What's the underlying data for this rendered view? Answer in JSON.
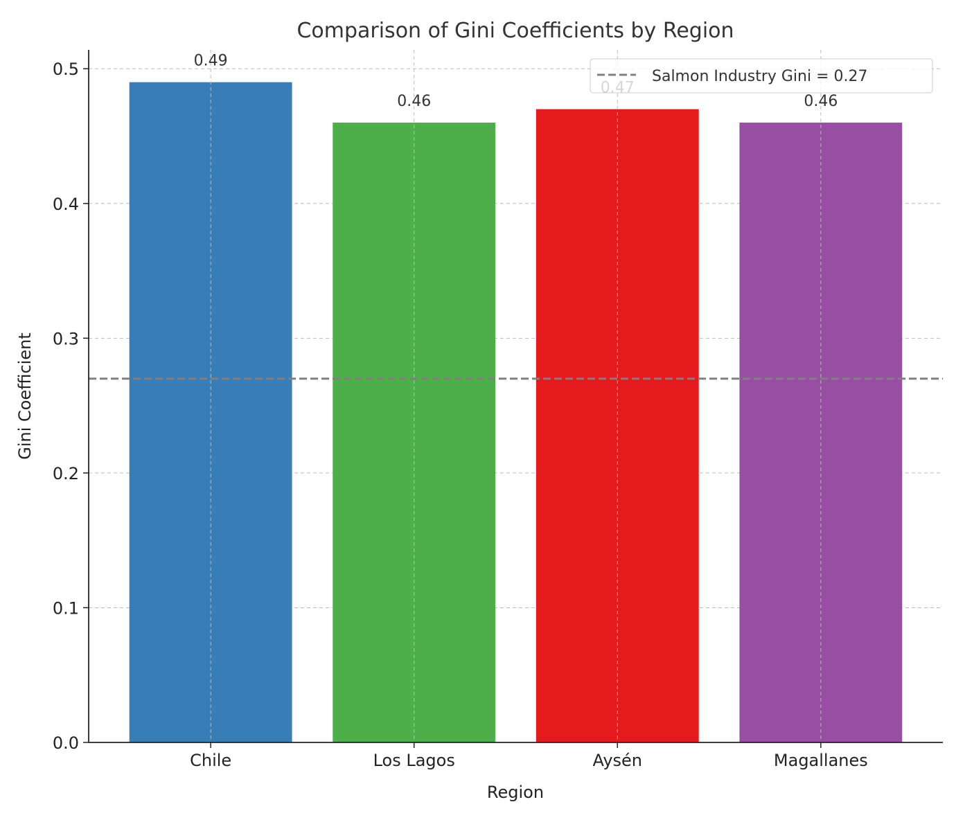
{
  "chart_data": {
    "type": "bar",
    "title": "Comparison of Gini Coefficients by Region",
    "xlabel": "Region",
    "ylabel": "Gini Coefficient",
    "categories": [
      "Chile",
      "Los Lagos",
      "Aysén",
      "Magallanes"
    ],
    "values": [
      0.49,
      0.46,
      0.47,
      0.46
    ],
    "value_labels": [
      "0.49",
      "0.46",
      "0.47",
      "0.46"
    ],
    "colors": [
      "#377eb8",
      "#4daf4a",
      "#e41a1c",
      "#984ea3"
    ],
    "ylim": [
      0,
      0.514
    ],
    "yticks": [
      0.0,
      0.1,
      0.2,
      0.3,
      0.4,
      0.5
    ],
    "ytick_labels": [
      "0.0",
      "0.1",
      "0.2",
      "0.3",
      "0.4",
      "0.5"
    ],
    "grid": true,
    "reference_line": {
      "value": 0.27,
      "label": "Salmon Industry Gini = 0.27",
      "color": "#808080",
      "style": "dashed"
    },
    "legend": {
      "placement": "top-right",
      "entries": [
        "Salmon Industry Gini = 0.27"
      ]
    }
  }
}
